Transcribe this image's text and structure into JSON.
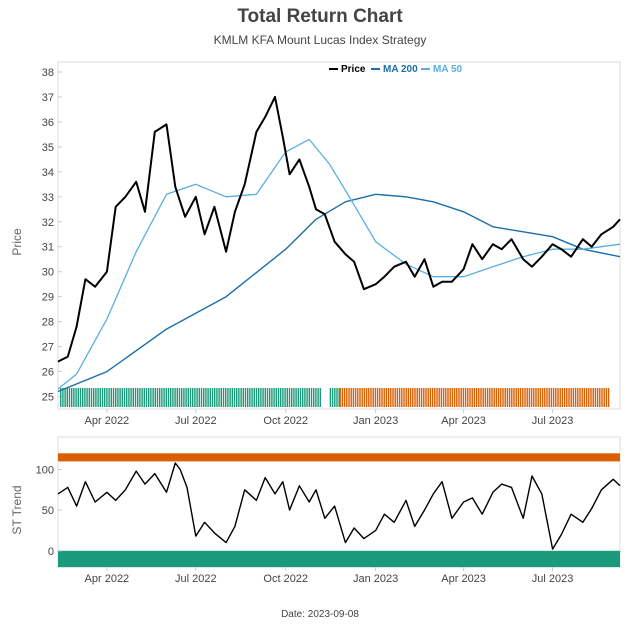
{
  "title": "Total Return Chart",
  "subtitle": "KMLM KFA Mount Lucas Index Strategy",
  "footer": "Date: 2023-09-08",
  "colors": {
    "price": "#000000",
    "ma200": "#1a6fa8",
    "ma50": "#5aaee0",
    "bull": "#1a9a7a",
    "bear": "#d95f02",
    "text": "#444444"
  },
  "chart_data": [
    {
      "type": "line",
      "ylabel": "Price",
      "ylim": [
        24.5,
        38.4
      ],
      "yticks": [
        25,
        26,
        27,
        28,
        29,
        30,
        31,
        32,
        33,
        34,
        35,
        36,
        37,
        38
      ],
      "xlim": [
        "2022-02-10",
        "2023-09-08"
      ],
      "xticks": [
        {
          "date": "2022-04-01",
          "label": "Apr 2022"
        },
        {
          "date": "2022-07-01",
          "label": "Jul 2022"
        },
        {
          "date": "2022-10-01",
          "label": "Oct 2022"
        },
        {
          "date": "2023-01-01",
          "label": "Jan 2023"
        },
        {
          "date": "2023-04-01",
          "label": "Apr 2023"
        },
        {
          "date": "2023-07-01",
          "label": "Jul 2023"
        }
      ],
      "legend_position": "top-right",
      "series": [
        {
          "name": "Price",
          "x": [
            "2022-02-10",
            "2022-02-20",
            "2022-03-01",
            "2022-03-10",
            "2022-03-20",
            "2022-04-01",
            "2022-04-10",
            "2022-04-20",
            "2022-05-01",
            "2022-05-10",
            "2022-05-20",
            "2022-06-01",
            "2022-06-10",
            "2022-06-20",
            "2022-07-01",
            "2022-07-10",
            "2022-07-20",
            "2022-08-01",
            "2022-08-10",
            "2022-08-20",
            "2022-09-01",
            "2022-09-10",
            "2022-09-20",
            "2022-09-28",
            "2022-10-05",
            "2022-10-15",
            "2022-10-25",
            "2022-11-01",
            "2022-11-10",
            "2022-11-20",
            "2022-12-01",
            "2022-12-10",
            "2022-12-20",
            "2023-01-01",
            "2023-01-10",
            "2023-01-20",
            "2023-02-01",
            "2023-02-10",
            "2023-02-20",
            "2023-03-01",
            "2023-03-10",
            "2023-03-20",
            "2023-04-01",
            "2023-04-10",
            "2023-04-20",
            "2023-05-01",
            "2023-05-10",
            "2023-05-20",
            "2023-06-01",
            "2023-06-10",
            "2023-06-20",
            "2023-07-01",
            "2023-07-10",
            "2023-07-20",
            "2023-08-01",
            "2023-08-10",
            "2023-08-20",
            "2023-09-01",
            "2023-09-08"
          ],
          "values": [
            26.4,
            26.6,
            27.8,
            29.7,
            29.4,
            30.0,
            32.6,
            33.0,
            33.6,
            32.4,
            35.6,
            35.9,
            33.4,
            32.2,
            33.0,
            31.5,
            32.6,
            30.8,
            32.4,
            33.5,
            35.6,
            36.2,
            37.0,
            35.4,
            33.9,
            34.5,
            33.4,
            32.5,
            32.3,
            31.2,
            30.7,
            30.4,
            29.3,
            29.5,
            29.8,
            30.2,
            30.4,
            29.8,
            30.5,
            29.4,
            29.6,
            29.6,
            30.1,
            31.1,
            30.5,
            31.1,
            30.9,
            31.3,
            30.5,
            30.2,
            30.6,
            31.1,
            30.9,
            30.6,
            31.3,
            31.0,
            31.5,
            31.8,
            32.1
          ]
        },
        {
          "name": "MA 200",
          "x": [
            "2022-02-10",
            "2022-04-01",
            "2022-06-01",
            "2022-08-01",
            "2022-10-01",
            "2022-11-01",
            "2022-12-01",
            "2023-01-01",
            "2023-02-01",
            "2023-03-01",
            "2023-04-01",
            "2023-05-01",
            "2023-06-01",
            "2023-07-01",
            "2023-08-01",
            "2023-09-08"
          ],
          "values": [
            25.2,
            26.0,
            27.7,
            29.0,
            30.9,
            32.1,
            32.8,
            33.1,
            33.0,
            32.8,
            32.4,
            31.8,
            31.6,
            31.4,
            30.9,
            30.6
          ]
        },
        {
          "name": "MA 50",
          "x": [
            "2022-02-10",
            "2022-03-01",
            "2022-04-01",
            "2022-05-01",
            "2022-06-01",
            "2022-07-01",
            "2022-08-01",
            "2022-09-01",
            "2022-10-01",
            "2022-10-25",
            "2022-11-15",
            "2022-12-05",
            "2023-01-01",
            "2023-02-01",
            "2023-03-01",
            "2023-04-01",
            "2023-05-01",
            "2023-06-01",
            "2023-07-01",
            "2023-08-01",
            "2023-09-08"
          ],
          "values": [
            25.3,
            25.9,
            28.1,
            30.8,
            33.1,
            33.5,
            33.0,
            33.1,
            34.8,
            35.3,
            34.3,
            33.0,
            31.2,
            30.3,
            29.8,
            29.8,
            30.2,
            30.6,
            30.9,
            30.9,
            31.1
          ]
        }
      ],
      "regimes": [
        {
          "start": "2022-02-12",
          "end": "2022-11-06",
          "state": "bull"
        },
        {
          "start": "2022-11-06",
          "end": "2022-11-15",
          "state": "none"
        },
        {
          "start": "2022-11-15",
          "end": "2022-11-25",
          "state": "bull"
        },
        {
          "start": "2022-11-25",
          "end": "2023-08-28",
          "state": "bear"
        }
      ]
    },
    {
      "type": "line",
      "ylabel": "ST Trend",
      "ylim": [
        -20,
        140
      ],
      "yticks": [
        0,
        50,
        100
      ],
      "xlim": [
        "2022-02-10",
        "2023-09-08"
      ],
      "bands": [
        {
          "range": [
            110,
            120
          ],
          "state": "bear"
        },
        {
          "range": [
            -20,
            0
          ],
          "state": "bull"
        }
      ],
      "series": [
        {
          "x": [
            "2022-02-10",
            "2022-02-20",
            "2022-03-01",
            "2022-03-10",
            "2022-03-20",
            "2022-04-01",
            "2022-04-10",
            "2022-04-20",
            "2022-05-01",
            "2022-05-10",
            "2022-05-20",
            "2022-06-01",
            "2022-06-10",
            "2022-06-15",
            "2022-06-22",
            "2022-07-01",
            "2022-07-10",
            "2022-07-20",
            "2022-08-01",
            "2022-08-10",
            "2022-08-20",
            "2022-09-01",
            "2022-09-10",
            "2022-09-20",
            "2022-09-28",
            "2022-10-05",
            "2022-10-15",
            "2022-10-25",
            "2022-11-01",
            "2022-11-10",
            "2022-11-20",
            "2022-12-01",
            "2022-12-10",
            "2022-12-20",
            "2023-01-01",
            "2023-01-10",
            "2023-01-20",
            "2023-02-01",
            "2023-02-10",
            "2023-02-20",
            "2023-03-01",
            "2023-03-10",
            "2023-03-20",
            "2023-04-01",
            "2023-04-10",
            "2023-04-20",
            "2023-05-01",
            "2023-05-10",
            "2023-05-20",
            "2023-06-01",
            "2023-06-10",
            "2023-06-20",
            "2023-07-01",
            "2023-07-10",
            "2023-07-20",
            "2023-08-01",
            "2023-08-10",
            "2023-08-20",
            "2023-09-01",
            "2023-09-08"
          ],
          "values": [
            70,
            78,
            55,
            85,
            60,
            72,
            62,
            75,
            98,
            82,
            95,
            72,
            108,
            100,
            78,
            18,
            35,
            22,
            10,
            30,
            75,
            62,
            90,
            70,
            85,
            50,
            80,
            60,
            75,
            40,
            55,
            10,
            28,
            15,
            25,
            45,
            35,
            62,
            30,
            50,
            70,
            85,
            40,
            60,
            65,
            45,
            72,
            82,
            78,
            40,
            92,
            70,
            2,
            20,
            45,
            35,
            52,
            75,
            88,
            80
          ]
        }
      ]
    }
  ]
}
